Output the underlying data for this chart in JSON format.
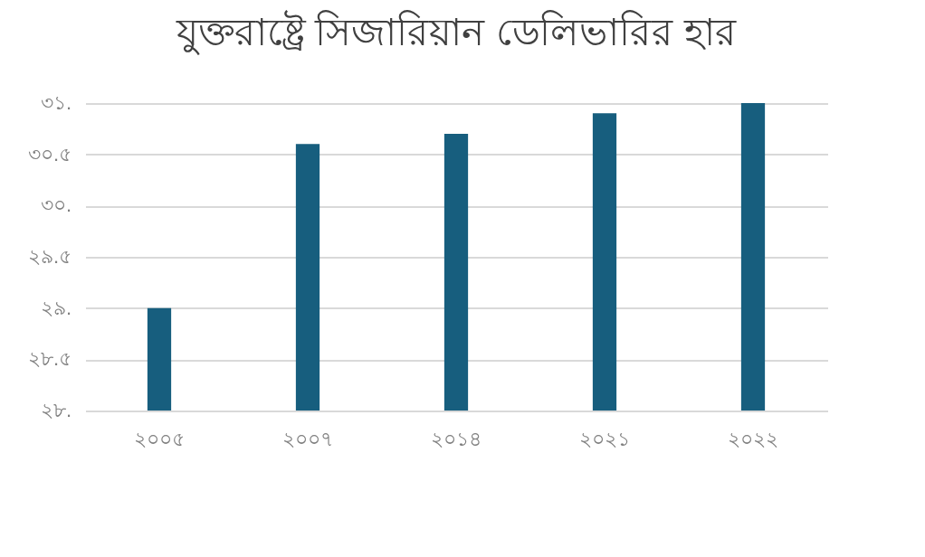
{
  "chart_data": {
    "type": "bar",
    "title": "যুক্তরাষ্ট্রে সিজারিয়ান ডেলিভারির হার",
    "categories": [
      "২০০৫",
      "২০০৭",
      "২০১৪",
      "২০২১",
      "২০২২"
    ],
    "values": [
      29.0,
      30.6,
      30.7,
      30.9,
      31.0
    ],
    "color": "#175e7e",
    "ylim": [
      28,
      31
    ],
    "yticks": [
      {
        "value": 28,
        "label": "২৮."
      },
      {
        "value": 28.5,
        "label": "২৮.৫"
      },
      {
        "value": 29,
        "label": "২৯."
      },
      {
        "value": 29.5,
        "label": "২৯.৫"
      },
      {
        "value": 30,
        "label": "৩০."
      },
      {
        "value": 30.5,
        "label": "৩০.৫"
      },
      {
        "value": 31,
        "label": "৩১."
      }
    ],
    "grid": "y"
  }
}
